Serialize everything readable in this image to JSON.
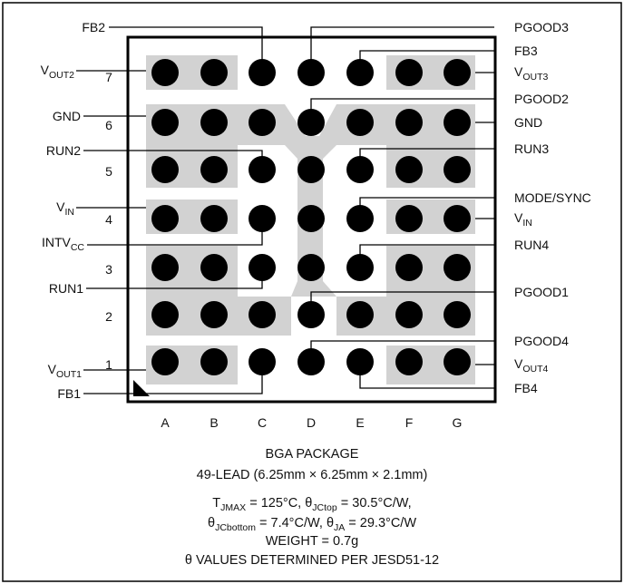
{
  "colors": {
    "pad": "#d2d2d2",
    "ball": "#000000",
    "border": "#000000",
    "background": "#ffffff"
  },
  "columns": [
    "A",
    "B",
    "C",
    "D",
    "E",
    "F",
    "G"
  ],
  "rows": [
    "7",
    "6",
    "5",
    "4",
    "3",
    "2",
    "1"
  ],
  "pins": {
    "fb2": "FB2",
    "vout2": {
      "main": "V",
      "sub": "OUT2"
    },
    "gnd_left": "GND",
    "run2": "RUN2",
    "vin_left": {
      "main": "V",
      "sub": "IN"
    },
    "intvcc": {
      "main": "INTV",
      "sub": "CC"
    },
    "run1": "RUN1",
    "vout1": {
      "main": "V",
      "sub": "OUT1"
    },
    "fb1": "FB1",
    "pgood3": "PGOOD3",
    "fb3": "FB3",
    "vout3": {
      "main": "V",
      "sub": "OUT3"
    },
    "pgood2": "PGOOD2",
    "gnd_right": "GND",
    "run3": "RUN3",
    "mode_sync": "MODE/SYNC",
    "vin_right": {
      "main": "V",
      "sub": "IN"
    },
    "run4": "RUN4",
    "pgood1": "PGOOD1",
    "pgood4": "PGOOD4",
    "vout4": {
      "main": "V",
      "sub": "OUT4"
    },
    "fb4": "FB4"
  },
  "caption": {
    "package": "BGA PACKAGE",
    "lead": "49-LEAD (6.25mm × 6.25mm × 2.1mm)",
    "tjmax": {
      "t": "T",
      "t_sub": "JMAX",
      "rest": " = 125°C, "
    },
    "theta_jctop": {
      "theta": "θ",
      "sub": "JCtop",
      "rest": " = 30.5°C/W,"
    },
    "theta_jcbottom": {
      "theta": "θ",
      "sub": "JCbottom",
      "rest": " = 7.4°C/W, "
    },
    "theta_ja": {
      "theta": "θ",
      "sub": "JA",
      "rest": " = 29.3°C/W"
    },
    "weight": "WEIGHT = 0.7g",
    "note": "θ VALUES DETERMINED PER JESD51-12"
  }
}
